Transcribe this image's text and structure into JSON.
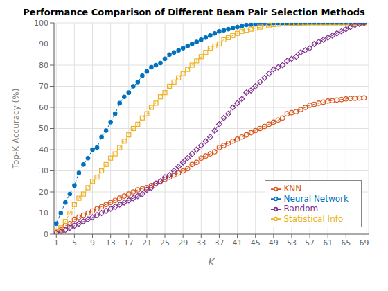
{
  "chart_data": {
    "type": "line",
    "title": "Performance Comparison of Different Beam Pair Selection Methods",
    "xlabel": "K",
    "ylabel": "Top-K Accuracy (%)",
    "x": [
      1,
      2,
      3,
      4,
      5,
      6,
      7,
      8,
      9,
      10,
      11,
      12,
      13,
      14,
      15,
      16,
      17,
      18,
      19,
      20,
      21,
      22,
      23,
      24,
      25,
      26,
      27,
      28,
      29,
      30,
      31,
      32,
      33,
      34,
      35,
      36,
      37,
      38,
      39,
      40,
      41,
      42,
      43,
      44,
      45,
      46,
      47,
      48,
      49,
      50,
      51,
      52,
      53,
      54,
      55,
      56,
      57,
      58,
      59,
      60,
      61,
      62,
      63,
      64,
      65,
      66,
      67,
      68,
      69
    ],
    "xlim": [
      0.5,
      70
    ],
    "ylim": [
      0,
      100
    ],
    "xticks": [
      1,
      5,
      9,
      13,
      17,
      21,
      25,
      29,
      33,
      37,
      41,
      45,
      49,
      53,
      57,
      61,
      65,
      69
    ],
    "yticks": [
      0,
      10,
      20,
      30,
      40,
      50,
      60,
      70,
      80,
      90,
      100
    ],
    "grid": true,
    "legend": "lower right",
    "series": [
      {
        "name": "Neural Network",
        "color": "#0072BD",
        "marker": "circle",
        "line_style": "dashed",
        "values": [
          5,
          10,
          15,
          19,
          23,
          29,
          33,
          36,
          40,
          41,
          46,
          49,
          53,
          57,
          62,
          65,
          67,
          70,
          72,
          75,
          77,
          79,
          80,
          81,
          83,
          85,
          86,
          87,
          88,
          89,
          90,
          91,
          92,
          93,
          94,
          95,
          96,
          96.5,
          97,
          97.5,
          98,
          98.5,
          99,
          99.2,
          99.4,
          99.6,
          99.8,
          99.85,
          99.9,
          99.92,
          99.94,
          99.95,
          99.96,
          99.97,
          99.98,
          99.98,
          99.99,
          99.99,
          100,
          100,
          100,
          100,
          100,
          100,
          100,
          100,
          100,
          100,
          100
        ]
      },
      {
        "name": "KNN",
        "color": "#D95319",
        "marker": "open-circle",
        "line_style": "dashed",
        "values": [
          1,
          2,
          4,
          5,
          7,
          8,
          9,
          10,
          11,
          12,
          13,
          14,
          15,
          16,
          17,
          18,
          19,
          20,
          21,
          21.5,
          22,
          23,
          24,
          25,
          26,
          27,
          28,
          29,
          30,
          31,
          33,
          34,
          36,
          37,
          38,
          39,
          41,
          42,
          43,
          44,
          45,
          46,
          47,
          48,
          49,
          50,
          51,
          52,
          53,
          54,
          55,
          57,
          57.5,
          58,
          59,
          60,
          61,
          61.5,
          62,
          62.5,
          63,
          63.2,
          63.5,
          63.7,
          64,
          64.2,
          64.3,
          64.4,
          64.5
        ]
      },
      {
        "name": "Statistical Info",
        "color": "#EDB120",
        "marker": "open-square",
        "line_style": "dashed",
        "values": [
          1,
          3,
          6,
          10,
          14,
          17,
          19,
          22,
          25,
          27,
          30,
          33,
          36,
          38,
          41,
          44,
          47,
          50,
          52,
          55,
          57,
          60,
          62,
          65,
          67,
          70,
          72,
          74,
          76,
          78,
          80,
          82,
          84,
          86,
          88,
          89,
          90,
          92,
          93,
          94,
          95,
          96,
          96.5,
          97,
          97.5,
          98,
          98.5,
          99,
          99.2,
          99.4,
          99.6,
          99.7,
          99.8,
          99.85,
          99.9,
          99.95,
          100,
          100,
          100,
          100,
          100,
          100,
          100,
          100,
          100,
          100,
          100,
          100,
          100
        ]
      },
      {
        "name": "Random",
        "color": "#7E2F8E",
        "marker": "open-diamond",
        "line_style": "dashed",
        "values": [
          0.5,
          1,
          2,
          3,
          4,
          5,
          6,
          7,
          8,
          9,
          10,
          11,
          12,
          13,
          14,
          15,
          16,
          17,
          18,
          19,
          21,
          22,
          24,
          25,
          27,
          28,
          30,
          32,
          34,
          36,
          38,
          40,
          42,
          44,
          46,
          49,
          52,
          55,
          57,
          60,
          62,
          64,
          67,
          68,
          70,
          72,
          74,
          76,
          78,
          79,
          80,
          82,
          83,
          84,
          86,
          87,
          88,
          90,
          91,
          92,
          93,
          94,
          95,
          96,
          97,
          98,
          99,
          99.5,
          100
        ]
      }
    ]
  }
}
